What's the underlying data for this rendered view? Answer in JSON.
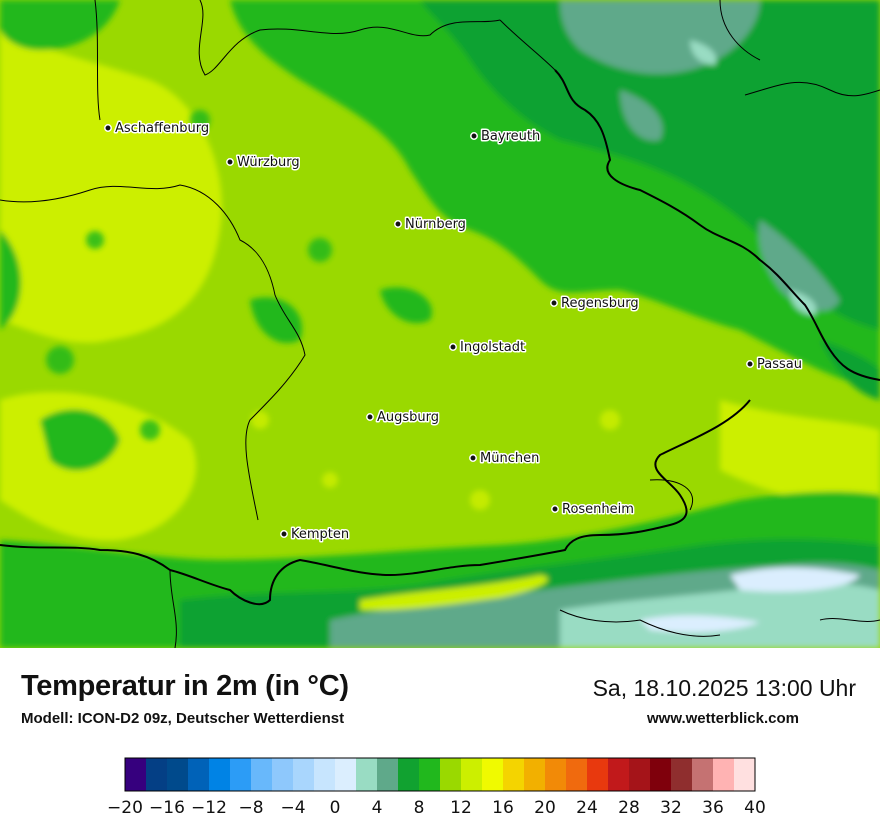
{
  "map": {
    "cities": [
      {
        "name": "Aschaffenburg"
      },
      {
        "name": "Würzburg"
      },
      {
        "name": "Bayreuth"
      },
      {
        "name": "Nürnberg"
      },
      {
        "name": "Regensburg"
      },
      {
        "name": "Ingolstadt"
      },
      {
        "name": "Passau"
      },
      {
        "name": "Augsburg"
      },
      {
        "name": "München"
      },
      {
        "name": "Rosenheim"
      },
      {
        "name": "Kempten"
      }
    ]
  },
  "footer": {
    "title": "Temperatur in 2m (in °C)",
    "model": "Modell: ICON-D2 09z, Deutscher Wetterdienst",
    "datetime": "Sa, 18.10.2025 13:00 Uhr",
    "website": "www.wetterblick.com"
  },
  "legend": {
    "unit": "°C",
    "min": -20,
    "max": 40,
    "step": 2,
    "tick_labels": [
      "−20",
      "−16",
      "−12",
      "−8",
      "−4",
      "0",
      "4",
      "8",
      "12",
      "16",
      "20",
      "24",
      "28",
      "32",
      "36",
      "40"
    ],
    "colors": [
      "#36007e",
      "#043f85",
      "#004a8c",
      "#0062b8",
      "#0083e5",
      "#2c9cf6",
      "#68b8fb",
      "#8ec8fc",
      "#a9d6fd",
      "#c7e5fe",
      "#dbeefe",
      "#99dcc3",
      "#5fa98a",
      "#11a230",
      "#21b81d",
      "#9ad900",
      "#ccef00",
      "#f0fa00",
      "#f4d400",
      "#f2b000",
      "#f28a07",
      "#f06a0e",
      "#e8390e",
      "#c1191b",
      "#a51419",
      "#7f000c",
      "#8f2e2e",
      "#c57272",
      "#ffb3b3",
      "#ffe0e0"
    ]
  }
}
